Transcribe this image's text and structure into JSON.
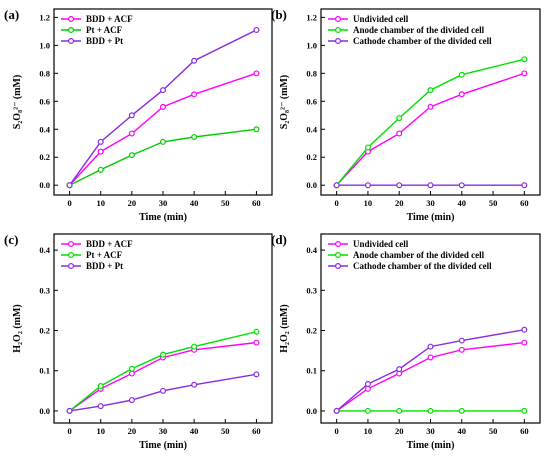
{
  "chart_data": [
    {
      "type": "line",
      "panel_label": "(a)",
      "xlabel": "Time (min)",
      "ylabel": "S₂O₈²⁻ (mM)",
      "x": [
        0,
        10,
        20,
        30,
        40,
        60
      ],
      "xticks": [
        "0",
        "10",
        "20",
        "30",
        "40",
        "50",
        "60"
      ],
      "yticks": [
        "0.0",
        "0.2",
        "0.4",
        "0.6",
        "0.8",
        "1.0",
        "1.2"
      ],
      "xlim": [
        -5,
        65
      ],
      "ylim": [
        -0.07,
        1.26
      ],
      "grid": false,
      "legend_position": "top-left",
      "series": [
        {
          "name": "BDD + ACF",
          "color": "#ff00ff",
          "values": [
            0,
            0.24,
            0.37,
            0.56,
            0.65,
            0.8
          ]
        },
        {
          "name": "Pt + ACF",
          "color": "#00cc00",
          "values": [
            0,
            0.11,
            0.215,
            0.31,
            0.345,
            0.4
          ]
        },
        {
          "name": "BDD + Pt",
          "color": "#8a2be2",
          "values": [
            0,
            0.31,
            0.5,
            0.68,
            0.89,
            1.11
          ]
        }
      ]
    },
    {
      "type": "line",
      "panel_label": "(b)",
      "xlabel": "Time (min)",
      "ylabel": "S₂O₈²⁻ (mM)",
      "x": [
        0,
        10,
        20,
        30,
        40,
        60
      ],
      "xticks": [
        "0",
        "10",
        "20",
        "30",
        "40",
        "50",
        "60"
      ],
      "yticks": [
        "0.0",
        "0.2",
        "0.4",
        "0.6",
        "0.8",
        "1.0",
        "1.2"
      ],
      "xlim": [
        -5,
        65
      ],
      "ylim": [
        -0.07,
        1.26
      ],
      "grid": false,
      "legend_position": "top-left",
      "series": [
        {
          "name": "Undivided cell",
          "color": "#ff00ff",
          "values": [
            0,
            0.24,
            0.37,
            0.56,
            0.65,
            0.8
          ]
        },
        {
          "name": "Anode chamber of the divided cell",
          "color": "#00e000",
          "values": [
            0,
            0.27,
            0.48,
            0.68,
            0.79,
            0.9
          ]
        },
        {
          "name": "Cathode chamber of the divided cell",
          "color": "#8a2be2",
          "values": [
            0,
            0,
            0,
            0,
            0,
            0
          ]
        }
      ]
    },
    {
      "type": "line",
      "panel_label": "(c)",
      "xlabel": "Time (min)",
      "ylabel": "H₂O₂ (mM)",
      "x": [
        0,
        10,
        20,
        30,
        40,
        60
      ],
      "xticks": [
        "0",
        "10",
        "20",
        "30",
        "40",
        "50",
        "60"
      ],
      "yticks": [
        "0.0",
        "0.1",
        "0.2",
        "0.3",
        "0.4"
      ],
      "xlim": [
        -5,
        65
      ],
      "ylim": [
        -0.03,
        0.44
      ],
      "grid": false,
      "legend_position": "top-left",
      "series": [
        {
          "name": "BDD + ACF",
          "color": "#ff00ff",
          "values": [
            0,
            0.055,
            0.093,
            0.133,
            0.152,
            0.17
          ]
        },
        {
          "name": "Pt + ACF",
          "color": "#00e000",
          "values": [
            0,
            0.062,
            0.105,
            0.14,
            0.16,
            0.197
          ]
        },
        {
          "name": "BDD + Pt",
          "color": "#8a2be2",
          "values": [
            0,
            0.012,
            0.027,
            0.05,
            0.065,
            0.091
          ]
        }
      ]
    },
    {
      "type": "line",
      "panel_label": "(d)",
      "xlabel": "Time (min)",
      "ylabel": "H₂O₂ (mM)",
      "x": [
        0,
        10,
        20,
        30,
        40,
        60
      ],
      "xticks": [
        "0",
        "10",
        "20",
        "30",
        "40",
        "50",
        "60"
      ],
      "yticks": [
        "0.0",
        "0.1",
        "0.2",
        "0.3",
        "0.4"
      ],
      "xlim": [
        -5,
        65
      ],
      "ylim": [
        -0.03,
        0.44
      ],
      "grid": false,
      "legend_position": "top-left",
      "series": [
        {
          "name": "Undivided cell",
          "color": "#ff00ff",
          "values": [
            0,
            0.055,
            0.093,
            0.133,
            0.152,
            0.17
          ]
        },
        {
          "name": "Anode chamber of the divided cell",
          "color": "#00e000",
          "values": [
            0,
            0,
            0,
            0,
            0,
            0
          ]
        },
        {
          "name": "Cathode chamber of the divided cell",
          "color": "#8a2be2",
          "values": [
            0,
            0.067,
            0.104,
            0.16,
            0.175,
            0.202
          ]
        }
      ]
    }
  ]
}
